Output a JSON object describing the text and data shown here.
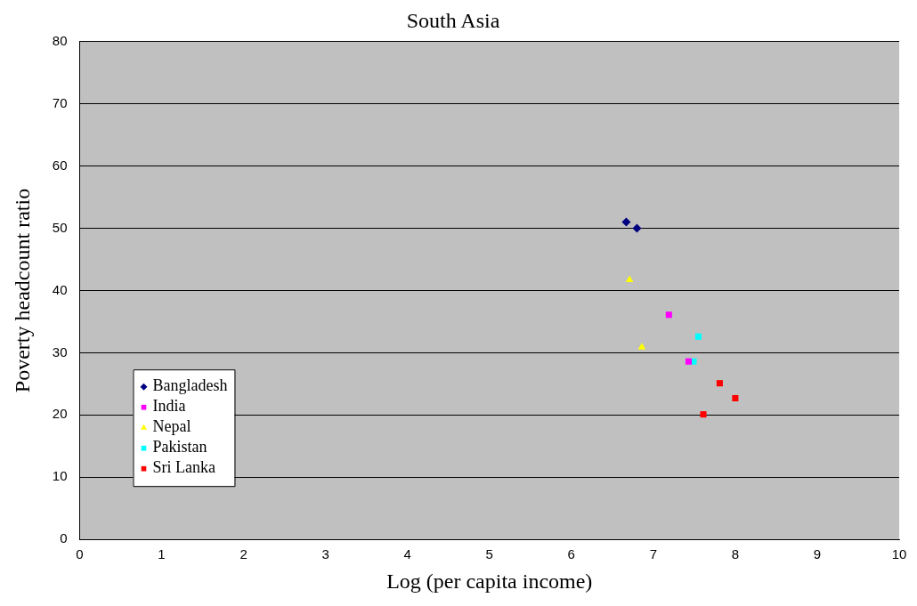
{
  "chart_data": {
    "type": "scatter",
    "title": "South Asia",
    "xlabel": "Log (per capita income)",
    "ylabel": "Poverty headcount ratio",
    "xlim": [
      0,
      10
    ],
    "ylim": [
      0,
      80
    ],
    "xticks": [
      0,
      1,
      2,
      3,
      4,
      5,
      6,
      7,
      8,
      9,
      10
    ],
    "yticks": [
      0,
      10,
      20,
      30,
      40,
      50,
      60,
      70,
      80
    ],
    "grid": "y",
    "legend": "bottom left",
    "series": [
      {
        "name": "Bangladesh",
        "color": "#000080",
        "marker": "diamond",
        "x": [
          6.67,
          6.8
        ],
        "values": [
          51,
          50
        ]
      },
      {
        "name": "India",
        "color": "#ff00ff",
        "marker": "square",
        "x": [
          7.19,
          7.43
        ],
        "values": [
          36.1,
          28.6
        ]
      },
      {
        "name": "Nepal",
        "color": "#ffff00",
        "marker": "triangle",
        "x": [
          6.71,
          6.86
        ],
        "values": [
          41.7,
          30.9
        ]
      },
      {
        "name": "Pakistan",
        "color": "#00ffff",
        "marker": "square",
        "x": [
          7.55,
          7.49
        ],
        "values": [
          32.6,
          28.6
        ]
      },
      {
        "name": "Sri Lanka",
        "color": "#ff0000",
        "marker": "square",
        "x": [
          7.81,
          8.0,
          7.61
        ],
        "values": [
          25.1,
          22.7,
          20.1
        ]
      }
    ]
  }
}
